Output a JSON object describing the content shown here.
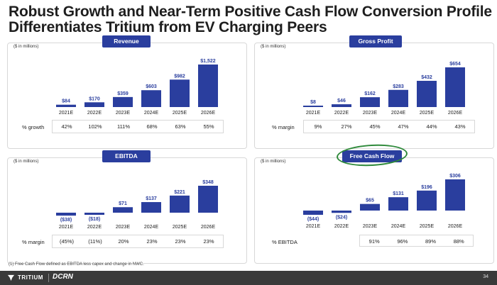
{
  "title_line1": "Robust Growth and Near-Term Positive Cash Flow Conversion Profile",
  "title_line2": "Differentiates Tritium from EV Charging Peers",
  "chart_data": [
    {
      "type": "bar",
      "title": "Revenue",
      "units": "($ in millions)",
      "categories": [
        "2021E",
        "2022E",
        "2023E",
        "2024E",
        "2025E",
        "2026E"
      ],
      "values": [
        84,
        170,
        359,
        603,
        982,
        1522
      ],
      "labels": [
        "$84",
        "$170",
        "$359",
        "$603",
        "$982",
        "$1,522"
      ],
      "metric_label": "% growth",
      "metric_values": [
        "42%",
        "102%",
        "111%",
        "68%",
        "63%",
        "55%"
      ]
    },
    {
      "type": "bar",
      "title": "Gross Profit",
      "units": "($ in millions)",
      "categories": [
        "2021E",
        "2022E",
        "2023E",
        "2024E",
        "2025E",
        "2026E"
      ],
      "values": [
        8,
        46,
        162,
        283,
        432,
        654
      ],
      "labels": [
        "$8",
        "$46",
        "$162",
        "$283",
        "$432",
        "$654"
      ],
      "metric_label": "% margin",
      "metric_values": [
        "9%",
        "27%",
        "45%",
        "47%",
        "44%",
        "43%"
      ]
    },
    {
      "type": "bar",
      "title": "EBITDA",
      "units": "($ in millions)",
      "categories": [
        "2021E",
        "2022E",
        "2023E",
        "2024E",
        "2025E",
        "2026E"
      ],
      "values": [
        -38,
        -18,
        71,
        137,
        221,
        348
      ],
      "labels": [
        "($38)",
        "($18)",
        "$71",
        "$137",
        "$221",
        "$348"
      ],
      "metric_label": "% margin",
      "metric_values": [
        "(45%)",
        "(11%)",
        "20%",
        "23%",
        "23%",
        "23%"
      ]
    },
    {
      "type": "bar",
      "title": "Free Cash Flow",
      "units": "($ in millions)",
      "categories": [
        "2021E",
        "2022E",
        "2023E",
        "2024E",
        "2025E",
        "2026E"
      ],
      "values": [
        -44,
        -24,
        65,
        131,
        196,
        306
      ],
      "labels": [
        "($44)",
        "($24)",
        "$65",
        "$131",
        "$196",
        "$306"
      ],
      "metric_label": "% EBITDA",
      "metric_values": [
        "",
        "",
        "91%",
        "96%",
        "89%",
        "88%"
      ]
    }
  ],
  "footnote": "(1)  Free Cash Flow defined as EBITDA less capex and change in NWC.",
  "footer": {
    "logo_text": "TRITIUM",
    "partner_logo": "DCRN",
    "page_number": "34"
  },
  "colors": {
    "bar": "#2a3e9e",
    "highlight_circle": "#2f8a3b",
    "footer_bg": "#3a3a3a"
  }
}
